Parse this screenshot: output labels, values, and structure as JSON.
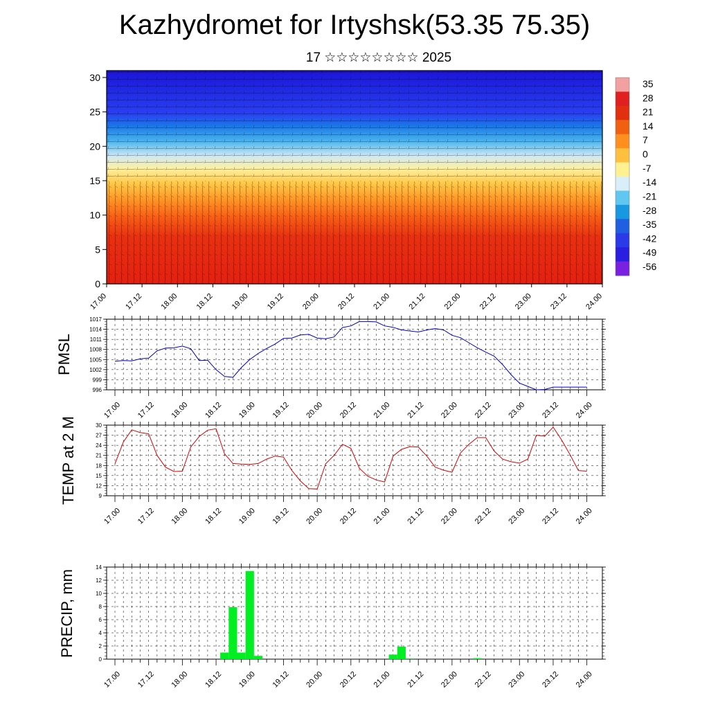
{
  "title": "Kazhydromet for Irtyshsk(53.35 75.35)",
  "subtitle": "17 ☆☆☆☆☆☆☆☆ 2025",
  "colors": {
    "pmsl_line": "#0000cc",
    "temp_line": "#dd0000",
    "precip_bar": "#00ee22"
  },
  "chart_data": [
    {
      "type": "heatmap",
      "name": "upper-air",
      "x_tick_labels": [
        "17.00",
        "17.12",
        "18.00",
        "18.12",
        "19.00",
        "19.12",
        "20.00",
        "20.12",
        "21.00",
        "21.12",
        "22.00",
        "22.12",
        "23.00",
        "23.12",
        "24.00"
      ],
      "ylim": [
        0,
        31
      ],
      "y_ticks": [
        0,
        5,
        10,
        15,
        20,
        25,
        30
      ],
      "colorbar_labels": [
        "35",
        "28",
        "21",
        "14",
        "7",
        "0",
        "-7",
        "-14",
        "-21",
        "-28",
        "-35",
        "-42",
        "-49",
        "-56"
      ],
      "colorbar_colors": [
        "#f2a0a0",
        "#e02020",
        "#e03010",
        "#f06010",
        "#ff9020",
        "#ffc040",
        "#fff090",
        "#d8eef8",
        "#60c8f0",
        "#1898e0",
        "#2060e0",
        "#2a3ae8",
        "#2a1ee0",
        "#7a20e0"
      ]
    },
    {
      "type": "line",
      "name": "PMSL",
      "ylabel": "PMSL",
      "ylim": [
        996,
        1017
      ],
      "y_ticks": [
        996,
        999,
        1002,
        1005,
        1008,
        1011,
        1014,
        1017
      ],
      "x_tick_labels": [
        "17.00",
        "17.12",
        "18.00",
        "18.12",
        "19.00",
        "19.12",
        "20.00",
        "20.12",
        "21.00",
        "21.12",
        "22.00",
        "22.12",
        "23.00",
        "23.12",
        "24.00"
      ],
      "x": [
        0,
        3,
        6,
        9,
        12,
        15,
        18,
        21,
        24,
        27,
        30,
        33,
        36,
        39,
        42,
        45,
        48,
        51,
        54,
        57,
        60,
        63,
        66,
        69,
        72,
        75,
        78,
        81,
        84,
        87,
        90,
        93,
        96,
        99,
        102,
        105,
        108,
        111,
        114,
        117,
        120,
        123,
        126,
        129,
        132,
        135,
        138,
        141,
        144,
        147,
        150,
        153,
        156,
        159,
        162,
        165,
        168
      ],
      "values": [
        1004.5,
        1004.7,
        1004.6,
        1005.2,
        1005.4,
        1007.6,
        1008.4,
        1008.5,
        1009.0,
        1008.2,
        1004.7,
        1004.8,
        1002.0,
        1000.0,
        999.7,
        1002.6,
        1005.0,
        1006.8,
        1008.3,
        1009.6,
        1011.3,
        1011.4,
        1012.3,
        1012.5,
        1011.4,
        1011.2,
        1011.7,
        1014.5,
        1015.0,
        1016.3,
        1016.3,
        1016.2,
        1015.0,
        1014.6,
        1013.8,
        1013.5,
        1013.2,
        1013.8,
        1014.2,
        1013.8,
        1012.2,
        1011.5,
        1010.0,
        1008.5,
        1007.2,
        1006.0,
        1003.5,
        1000.5,
        998.0,
        997.0,
        996.0,
        996.1,
        996.8,
        996.8,
        996.8,
        996.8,
        996.8
      ]
    },
    {
      "type": "line",
      "name": "TEMP at 2 M",
      "ylabel": "TEMP at 2 M",
      "ylim": [
        9,
        30
      ],
      "y_ticks": [
        9,
        12,
        15,
        18,
        21,
        24,
        27,
        30
      ],
      "x_tick_labels": [
        "17.00",
        "17.12",
        "18.00",
        "18.12",
        "19.00",
        "19.12",
        "20.00",
        "20.12",
        "21.00",
        "21.12",
        "22.00",
        "22.12",
        "23.00",
        "23.12",
        "24.00"
      ],
      "x": [
        0,
        3,
        6,
        9,
        12,
        15,
        18,
        21,
        24,
        27,
        30,
        33,
        36,
        39,
        42,
        45,
        48,
        51,
        54,
        57,
        60,
        63,
        66,
        69,
        72,
        75,
        78,
        81,
        84,
        87,
        90,
        93,
        96,
        99,
        102,
        105,
        108,
        111,
        114,
        117,
        120,
        123,
        126,
        129,
        132,
        135,
        138,
        141,
        144,
        147,
        150,
        153,
        156,
        159,
        162,
        165,
        168
      ],
      "values": [
        18.5,
        25.0,
        28.6,
        27.8,
        27.4,
        21.0,
        17.5,
        16.2,
        16.3,
        23.5,
        26.6,
        28.5,
        28.9,
        21.5,
        18.6,
        18.4,
        18.3,
        18.6,
        19.9,
        20.8,
        20.5,
        16.5,
        13.4,
        11.1,
        11.0,
        18.5,
        21.0,
        24.3,
        23.1,
        17.2,
        14.8,
        13.7,
        13.1,
        20.8,
        22.8,
        23.6,
        23.5,
        20.8,
        17.5,
        16.6,
        16.0,
        21.7,
        24.3,
        26.3,
        26.3,
        22.3,
        19.9,
        19.1,
        18.7,
        19.9,
        27.0,
        26.7,
        29.4,
        25.6,
        21.2,
        16.5,
        16.3
      ]
    },
    {
      "type": "bar",
      "name": "PRECIP, mm",
      "ylabel": "PRECIP, mm",
      "ylim": [
        0,
        14
      ],
      "y_ticks": [
        0,
        2,
        4,
        6,
        8,
        10,
        12,
        14
      ],
      "x_tick_labels": [
        "17.00",
        "17.12",
        "18.00",
        "18.12",
        "19.00",
        "19.12",
        "20.00",
        "20.12",
        "21.00",
        "21.12",
        "22.00",
        "22.12",
        "23.00",
        "23.12",
        "24.00"
      ],
      "x": [
        39,
        42,
        45,
        48,
        51,
        99,
        102,
        105,
        129
      ],
      "values": [
        1.0,
        7.9,
        1.0,
        13.4,
        0.5,
        0.7,
        1.9,
        0.1,
        0.15
      ]
    }
  ]
}
